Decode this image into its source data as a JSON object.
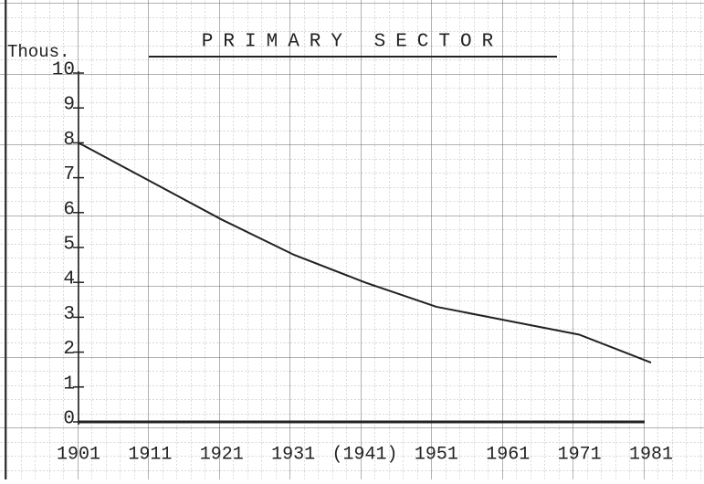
{
  "chart_data": {
    "type": "line",
    "title": "PRIMARY SECTOR",
    "ylabel": "Thous.",
    "categories": [
      "1901",
      "1911",
      "1921",
      "1931",
      "(1941)",
      "1951",
      "1961",
      "1971",
      "1981"
    ],
    "series": [
      {
        "name": "Primary sector",
        "color": "#222222",
        "values": [
          8.0,
          6.9,
          5.8,
          4.8,
          4.0,
          3.3,
          2.9,
          2.5,
          1.7
        ]
      }
    ],
    "ylim": [
      0,
      10
    ],
    "yticks": [
      0,
      1,
      2,
      3,
      4,
      5,
      6,
      7,
      8,
      9,
      10
    ]
  }
}
